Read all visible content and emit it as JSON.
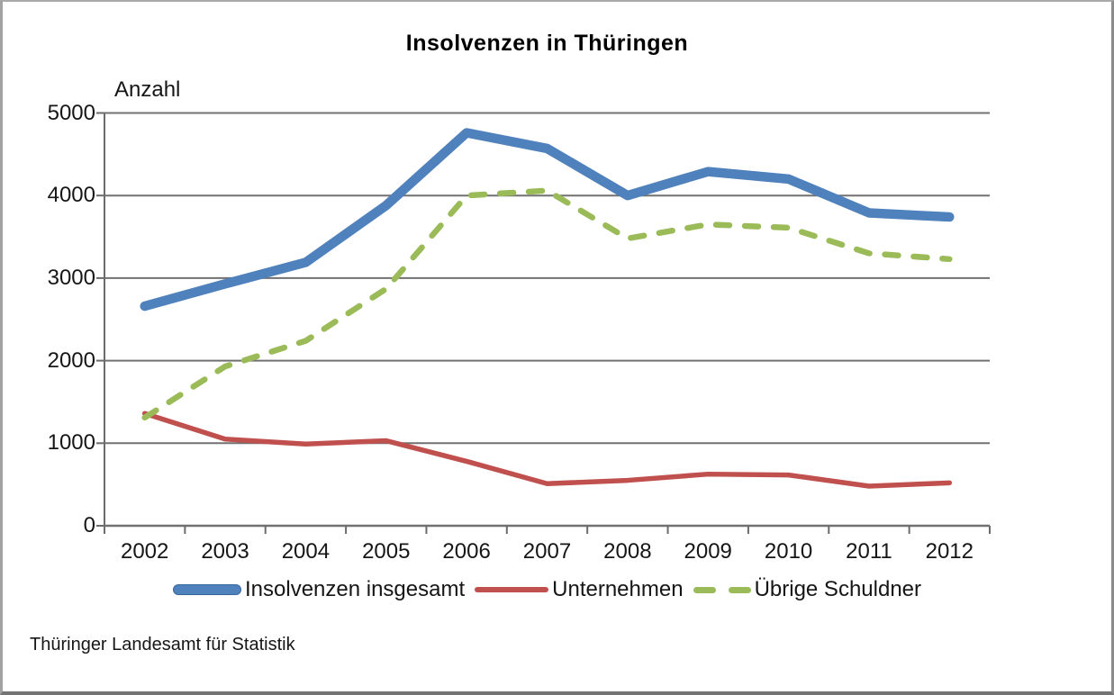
{
  "chart_data": {
    "type": "line",
    "title": "Insolvenzen in Thüringen",
    "ylabel": "Anzahl",
    "xlabel": "",
    "categories": [
      "2002",
      "2003",
      "2004",
      "2005",
      "2006",
      "2007",
      "2008",
      "2009",
      "2010",
      "2011",
      "2012"
    ],
    "series": [
      {
        "name": "Insolvenzen insgesamt",
        "color": "#4F81BD",
        "style": "solid-thick",
        "values": [
          2660,
          2930,
          3190,
          3880,
          4760,
          4570,
          4000,
          4290,
          4200,
          3790,
          3740
        ]
      },
      {
        "name": "Unternehmen",
        "color": "#C0504D",
        "style": "solid",
        "values": [
          1360,
          1050,
          990,
          1030,
          780,
          510,
          550,
          625,
          615,
          480,
          520
        ]
      },
      {
        "name": "Übrige Schuldner",
        "color": "#9BBB59",
        "style": "dashed",
        "values": [
          1310,
          1930,
          2240,
          2870,
          4000,
          4060,
          3480,
          3650,
          3610,
          3300,
          3230
        ]
      }
    ],
    "ylim": [
      0,
      5000
    ],
    "ytick_step": 1000,
    "grid": true,
    "legend_position": "bottom",
    "source": "Thüringer Landesamt für Statistik"
  },
  "colors": {
    "grid": "#717171",
    "axis": "#6b6b6b",
    "text": "#161616",
    "series_total": "#4F81BD",
    "series_unternehmen": "#C0504D",
    "series_uebrige": "#9BBB59"
  }
}
